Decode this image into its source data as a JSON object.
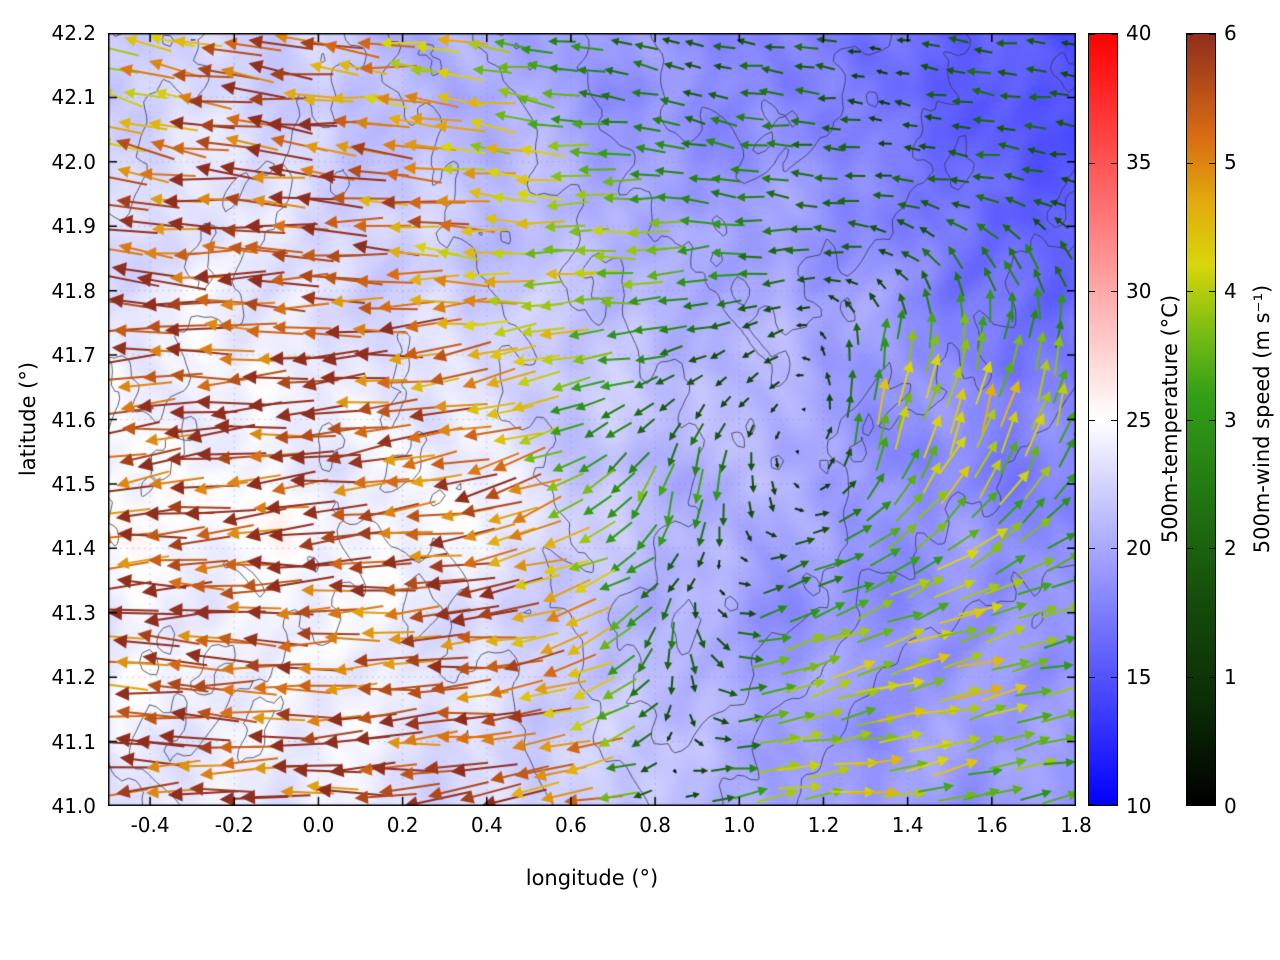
{
  "figure": {
    "background": "#ffffff"
  },
  "axes": {
    "xlabel": "longitude (°)",
    "ylabel": "latitude (°)",
    "xlim": [
      -0.5,
      1.8
    ],
    "ylim": [
      41.0,
      42.2
    ],
    "xticks": [
      -0.4,
      -0.2,
      0.0,
      0.2,
      0.4,
      0.6,
      0.8,
      1.0,
      1.2,
      1.4,
      1.6,
      1.8
    ],
    "xtick_labels": [
      "-0.4",
      "-0.2",
      "0.0",
      "0.2",
      "0.4",
      "0.6",
      "0.8",
      "1.0",
      "1.2",
      "1.4",
      "1.6",
      "1.8"
    ],
    "yticks": [
      41.0,
      41.1,
      41.2,
      41.3,
      41.4,
      41.5,
      41.6,
      41.7,
      41.8,
      41.9,
      42.0,
      42.1,
      42.2
    ],
    "ytick_labels": [
      "41.0",
      "41.1",
      "41.2",
      "41.3",
      "41.4",
      "41.5",
      "41.6",
      "41.7",
      "41.8",
      "41.9",
      "42.0",
      "42.1",
      "42.2"
    ]
  },
  "colorbars": [
    {
      "id": "temperature",
      "label": "500m-temperature (°C)",
      "min": 10,
      "max": 40,
      "ticks": [
        10,
        15,
        20,
        25,
        30,
        35,
        40
      ],
      "tick_labels": [
        "10",
        "15",
        "20",
        "25",
        "30",
        "35",
        "40"
      ],
      "stops": [
        {
          "v": 10,
          "c": "#0000ff"
        },
        {
          "v": 17.5,
          "c": "#7d7dff"
        },
        {
          "v": 25,
          "c": "#ffffff"
        },
        {
          "v": 32.5,
          "c": "#ff7d7d"
        },
        {
          "v": 40,
          "c": "#ff0000"
        }
      ]
    },
    {
      "id": "windspeed",
      "label": "500m-wind speed (m s⁻¹)",
      "min": 0,
      "max": 6,
      "ticks": [
        0,
        1,
        2,
        3,
        4,
        5,
        6
      ],
      "tick_labels": [
        "0",
        "1",
        "2",
        "3",
        "4",
        "5",
        "6"
      ],
      "stops": [
        {
          "v": 0.0,
          "c": "#000000"
        },
        {
          "v": 0.8,
          "c": "#0b2d06"
        },
        {
          "v": 1.6,
          "c": "#154d0b"
        },
        {
          "v": 2.4,
          "c": "#217711"
        },
        {
          "v": 3.2,
          "c": "#33a017"
        },
        {
          "v": 3.7,
          "c": "#7dbe12"
        },
        {
          "v": 4.2,
          "c": "#d8d60a"
        },
        {
          "v": 4.7,
          "c": "#e2a90e"
        },
        {
          "v": 5.2,
          "c": "#d96c12"
        },
        {
          "v": 6.0,
          "c": "#8f2e1d"
        }
      ]
    }
  ],
  "chart_data": {
    "type": "heatmap",
    "subtype": "wind vector field (quiver, colored by 500m-wind speed) over a 500m-temperature heatmap with terrain contour lines",
    "title": "",
    "xlabel": "longitude (°)",
    "ylabel": "latitude (°)",
    "xlim": [
      -0.5,
      1.8
    ],
    "ylim": [
      41.0,
      42.2
    ],
    "grid": "faint dashed graticule at major ticks",
    "background_field": {
      "name": "500m-temperature",
      "units": "°C",
      "range": [
        10,
        40
      ],
      "lons": [
        -0.5,
        -0.27,
        -0.04,
        0.19,
        0.42,
        0.65,
        0.88,
        1.11,
        1.34,
        1.57,
        1.8
      ],
      "lats": [
        41.0,
        41.15,
        41.3,
        41.45,
        41.6,
        41.75,
        41.9,
        42.05,
        42.2
      ],
      "values": [
        [
          23.5,
          24.0,
          24.0,
          23.5,
          23.0,
          22.5,
          21.0,
          20.0,
          19.5,
          19.0,
          19.0
        ],
        [
          24.0,
          24.5,
          24.0,
          23.5,
          23.0,
          22.0,
          20.5,
          19.5,
          19.0,
          19.0,
          18.5
        ],
        [
          24.0,
          24.5,
          24.5,
          24.0,
          23.0,
          21.5,
          20.0,
          19.0,
          19.0,
          18.5,
          18.5
        ],
        [
          24.5,
          25.0,
          24.5,
          24.0,
          24.5,
          22.0,
          20.5,
          20.0,
          19.0,
          18.5,
          18.0
        ],
        [
          24.0,
          24.5,
          24.0,
          23.5,
          23.5,
          21.5,
          21.0,
          20.5,
          19.0,
          18.0,
          17.5
        ],
        [
          23.5,
          24.0,
          23.5,
          23.0,
          22.0,
          21.5,
          21.0,
          20.0,
          19.0,
          17.5,
          17.0
        ],
        [
          23.0,
          23.5,
          23.0,
          22.5,
          21.5,
          20.5,
          20.0,
          19.5,
          18.0,
          16.5,
          16.0
        ],
        [
          22.5,
          23.0,
          22.5,
          21.5,
          20.5,
          19.5,
          19.0,
          18.5,
          17.0,
          16.0,
          15.5
        ],
        [
          22.0,
          22.5,
          22.0,
          21.0,
          20.0,
          19.0,
          18.5,
          18.0,
          16.5,
          15.5,
          15.0
        ]
      ]
    },
    "wind_field": {
      "name": "500m-wind speed",
      "units": "m s⁻¹",
      "range": [
        0,
        6
      ],
      "lons": [
        -0.5,
        -0.27,
        -0.04,
        0.19,
        0.42,
        0.65,
        0.88,
        1.11,
        1.34,
        1.57,
        1.8
      ],
      "lats": [
        41.0,
        41.12,
        41.24,
        41.36,
        41.48,
        41.6,
        41.72,
        41.84,
        41.96,
        42.08,
        42.2
      ],
      "u": [
        [
          -5.5,
          -5.6,
          -5.5,
          -5.6,
          -5.4,
          -5.0,
          1.5,
          3.8,
          4.0,
          3.6,
          3.0
        ],
        [
          -5.6,
          -5.7,
          -5.5,
          -5.6,
          -5.5,
          -4.5,
          0.5,
          3.6,
          3.9,
          3.8,
          3.2
        ],
        [
          -5.5,
          -5.7,
          -5.6,
          -5.5,
          -5.6,
          -4.0,
          0.5,
          3.5,
          3.8,
          4.0,
          3.4
        ],
        [
          -5.6,
          -5.8,
          -5.6,
          -5.7,
          -5.5,
          -3.5,
          -0.8,
          2.0,
          3.0,
          3.5,
          3.0
        ],
        [
          -5.5,
          -5.8,
          -5.7,
          -5.6,
          -5.2,
          -3.0,
          -0.5,
          0.5,
          2.0,
          2.5,
          2.0
        ],
        [
          -5.6,
          -5.8,
          -5.7,
          -5.5,
          -5.0,
          -2.5,
          -1.0,
          -0.5,
          1.0,
          1.5,
          1.0
        ],
        [
          -5.8,
          -5.9,
          -5.7,
          -5.5,
          -4.5,
          -3.8,
          -2.0,
          -1.2,
          0.5,
          1.0,
          0.8
        ],
        [
          -5.5,
          -5.8,
          -5.8,
          -5.4,
          -4.2,
          -4.0,
          -3.5,
          -2.0,
          -1.5,
          -1.5,
          -1.0
        ],
        [
          -5.0,
          -5.6,
          -5.8,
          -5.2,
          -4.5,
          -4.0,
          -3.0,
          -2.2,
          -1.8,
          -2.0,
          -1.5
        ],
        [
          -4.2,
          -5.2,
          -5.6,
          -4.8,
          -4.0,
          -2.8,
          -2.0,
          -2.5,
          -1.2,
          -2.2,
          -1.8
        ],
        [
          -3.8,
          -4.8,
          -5.2,
          -4.5,
          -3.8,
          -2.5,
          -1.5,
          -2.2,
          -1.0,
          -2.0,
          -1.5
        ]
      ],
      "v": [
        [
          -0.5,
          -0.3,
          -0.5,
          -0.2,
          -0.8,
          -1.0,
          0.5,
          0.5,
          0.5,
          0.8,
          0.5
        ],
        [
          0.0,
          0.3,
          0.0,
          -0.3,
          -0.5,
          -1.5,
          -1.0,
          0.8,
          0.8,
          1.0,
          0.8
        ],
        [
          0.3,
          0.0,
          0.2,
          -0.3,
          -0.4,
          -2.0,
          -2.5,
          1.2,
          1.2,
          1.0,
          0.8
        ],
        [
          -0.3,
          0.0,
          -0.3,
          -0.5,
          -0.8,
          -1.5,
          -1.2,
          0.8,
          1.5,
          1.5,
          1.2
        ],
        [
          -1.0,
          -0.5,
          -0.5,
          -1.0,
          -1.5,
          -2.0,
          -4.0,
          -1.0,
          2.5,
          3.0,
          2.5
        ],
        [
          -0.8,
          -0.3,
          -0.5,
          -0.8,
          -1.2,
          -1.0,
          -1.5,
          -0.8,
          4.0,
          4.2,
          3.5
        ],
        [
          -0.3,
          0.0,
          -0.3,
          -0.5,
          -0.8,
          -0.5,
          -0.5,
          -0.5,
          3.0,
          3.5,
          3.0
        ],
        [
          0.5,
          0.3,
          0.0,
          0.3,
          0.2,
          -0.2,
          -0.3,
          -0.3,
          0.5,
          2.5,
          2.0
        ],
        [
          1.0,
          0.5,
          0.3,
          0.5,
          0.3,
          0.0,
          0.3,
          0.3,
          0.2,
          0.3,
          0.2
        ],
        [
          1.2,
          0.8,
          0.5,
          0.5,
          0.5,
          0.5,
          0.5,
          0.2,
          0.2,
          0.3,
          0.2
        ],
        [
          1.0,
          0.8,
          0.5,
          0.3,
          0.3,
          0.5,
          0.3,
          0.2,
          0.2,
          0.2,
          0.2
        ]
      ]
    },
    "terrain_contours": {
      "levels": [
        300,
        500,
        700,
        900,
        1100
      ],
      "lons": [
        -0.5,
        -0.27,
        -0.04,
        0.19,
        0.42,
        0.65,
        0.88,
        1.11,
        1.34,
        1.57,
        1.8
      ],
      "lats": [
        41.0,
        41.15,
        41.3,
        41.45,
        41.6,
        41.75,
        41.9,
        42.05,
        42.2
      ],
      "elevation": [
        [
          300,
          250,
          200,
          150,
          200,
          400,
          600,
          300,
          100,
          50,
          0
        ],
        [
          350,
          300,
          250,
          200,
          250,
          500,
          800,
          500,
          200,
          100,
          50
        ],
        [
          400,
          350,
          300,
          250,
          350,
          600,
          900,
          800,
          400,
          300,
          200
        ],
        [
          450,
          400,
          350,
          300,
          400,
          550,
          700,
          900,
          600,
          500,
          400
        ],
        [
          500,
          450,
          350,
          300,
          450,
          600,
          700,
          800,
          700,
          600,
          500
        ],
        [
          600,
          500,
          400,
          350,
          500,
          650,
          800,
          900,
          800,
          700,
          600
        ],
        [
          700,
          550,
          450,
          400,
          550,
          750,
          950,
          1000,
          900,
          800,
          650
        ],
        [
          800,
          600,
          500,
          450,
          600,
          850,
          1100,
          1150,
          1000,
          850,
          700
        ],
        [
          900,
          700,
          550,
          500,
          700,
          950,
          1200,
          1250,
          1100,
          900,
          750
        ]
      ]
    },
    "notes": "Strong (5-6 m/s, dark red) westward flow covers the western half; weak (0-3 m/s, black/green) variable winds over the central and northeastern mountains; moderate (3-4.5 m/s, yellow-green/yellow) onshore eastward flow in the southeast; orange upslope (northward) arrows over the eastern ranges around lon 1.3-1.7, lat 41.4-41.8."
  }
}
